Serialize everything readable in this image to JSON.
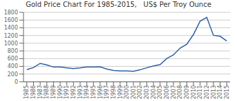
{
  "chart_data": {
    "type": "line",
    "title": "Gold Price Chart For 1985-2015,   US$ Per Troy Ounce",
    "x": [
      1985,
      1986,
      1987,
      1988,
      1989,
      1990,
      1991,
      1992,
      1993,
      1994,
      1995,
      1996,
      1997,
      1998,
      1999,
      2000,
      2001,
      2002,
      2003,
      2004,
      2005,
      2006,
      2007,
      2008,
      2009,
      2010,
      2011,
      2012,
      2013,
      2014,
      2015
    ],
    "values": [
      317,
      368,
      477,
      437,
      381,
      383,
      362,
      344,
      360,
      384,
      384,
      388,
      331,
      294,
      279,
      279,
      271,
      310,
      363,
      410,
      444,
      603,
      695,
      872,
      972,
      1225,
      1570,
      1669,
      1204,
      1180,
      1060
    ],
    "color": "#2e5fa3",
    "xlim": [
      1984.5,
      2015.5
    ],
    "xticks": [
      1985,
      1986,
      1987,
      1988,
      1989,
      1990,
      1991,
      1992,
      1993,
      1994,
      1995,
      1996,
      1997,
      1998,
      1999,
      2000,
      2001,
      2002,
      2003,
      2004,
      2005,
      2006,
      2007,
      2008,
      2009,
      2010,
      2011,
      2012,
      2013,
      2014,
      2015
    ],
    "ylim": [
      0,
      1800
    ],
    "yticks": [
      0,
      200,
      400,
      600,
      800,
      1000,
      1200,
      1400,
      1600,
      1800
    ],
    "grid": "y"
  }
}
